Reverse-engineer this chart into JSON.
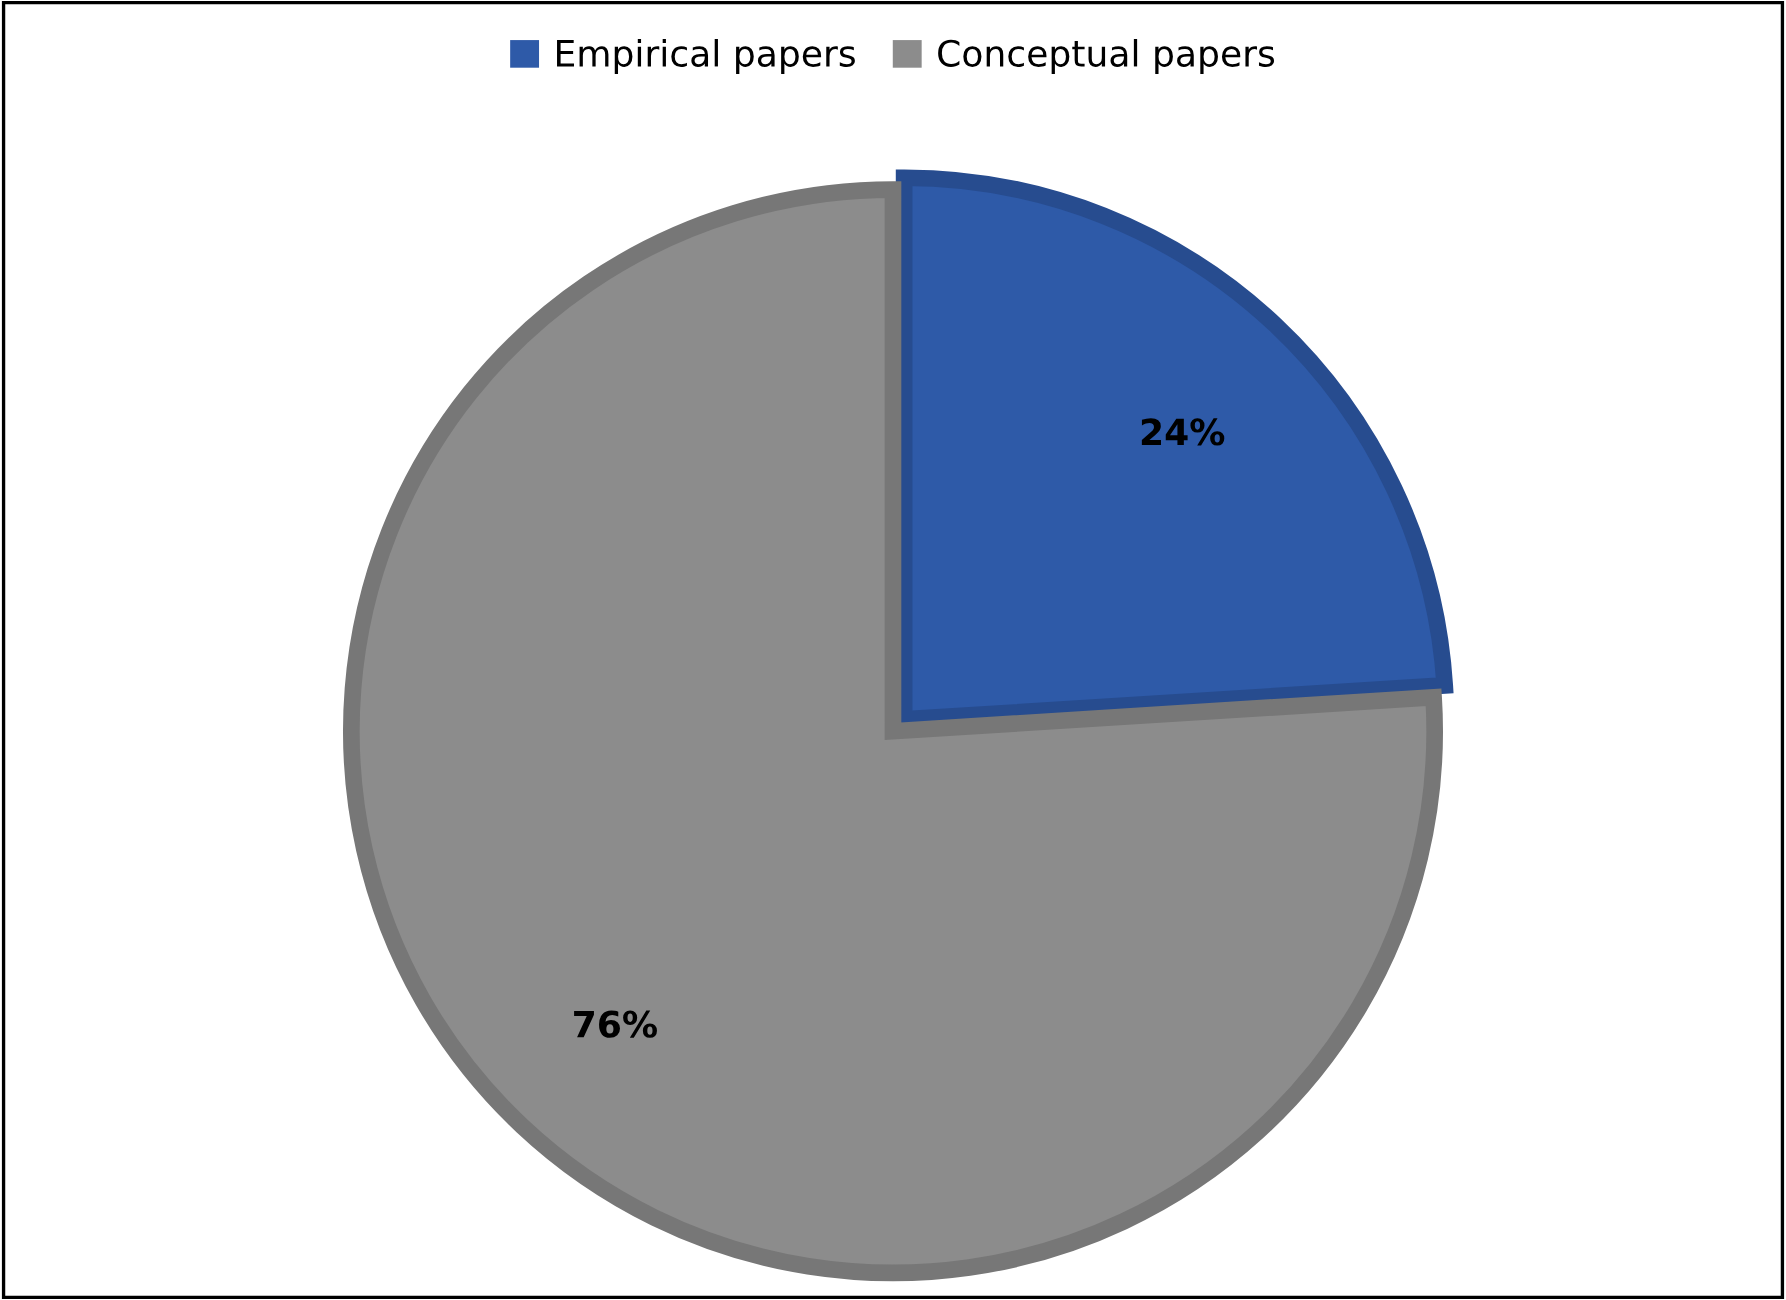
{
  "chart_data": {
    "type": "pie",
    "categories": [
      "Empirical papers",
      "Conceptual papers"
    ],
    "values": [
      24,
      76
    ],
    "colors": [
      "#2e5aa8",
      "#8c8c8c"
    ],
    "value_labels": [
      "24%",
      "76%"
    ],
    "legend": "top"
  }
}
